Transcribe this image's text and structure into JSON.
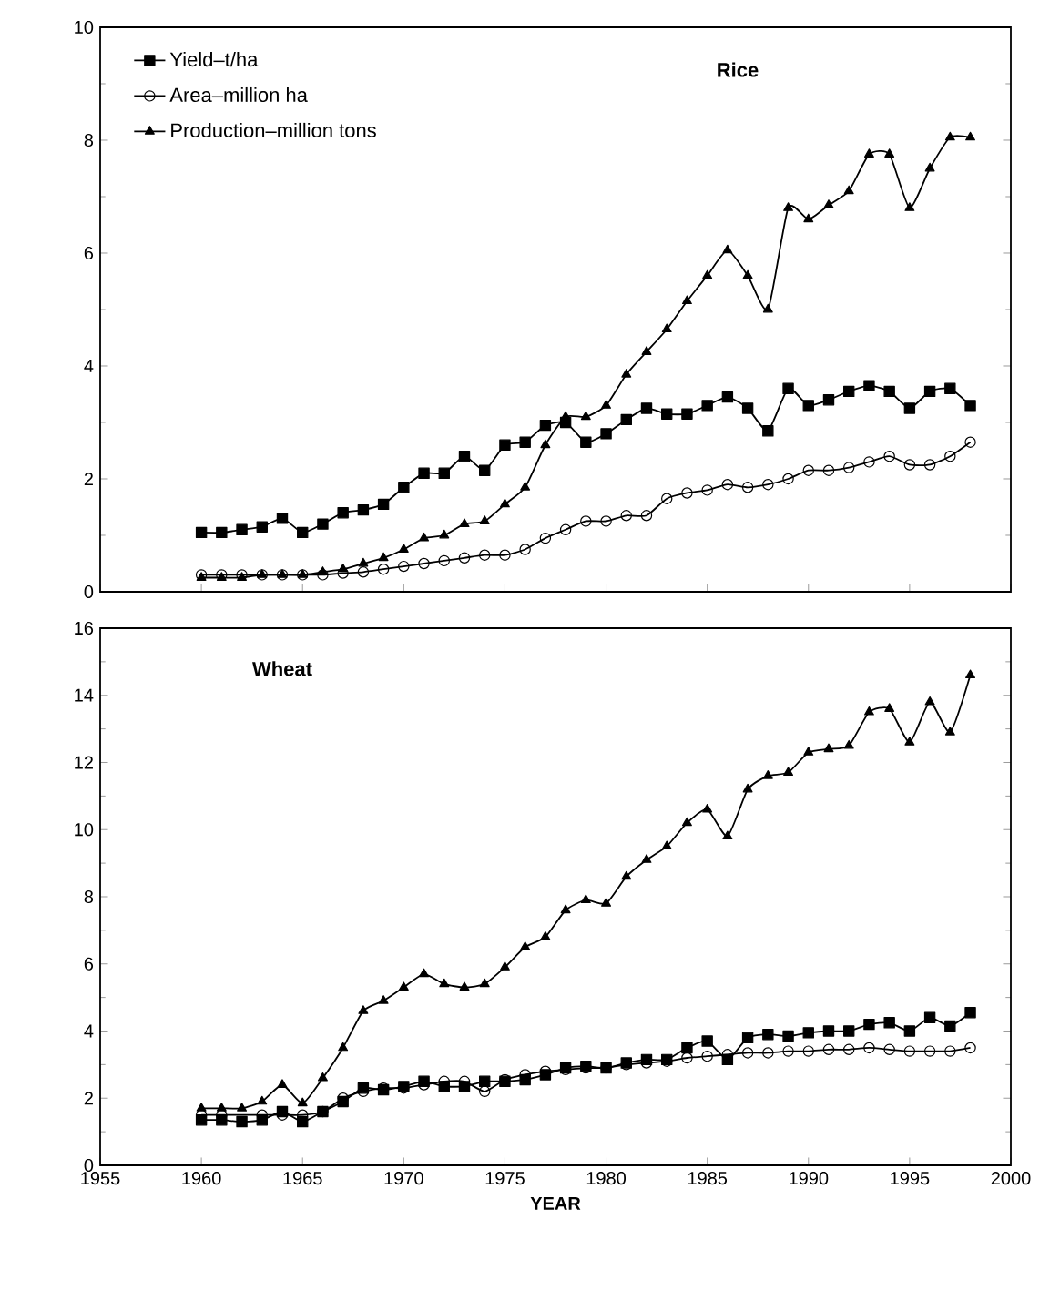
{
  "chart_data": [
    {
      "type": "line",
      "title": "Rice",
      "x": [
        1960,
        1961,
        1962,
        1963,
        1964,
        1965,
        1966,
        1967,
        1968,
        1969,
        1970,
        1971,
        1972,
        1973,
        1974,
        1975,
        1976,
        1977,
        1978,
        1979,
        1980,
        1981,
        1982,
        1983,
        1984,
        1985,
        1986,
        1987,
        1988,
        1989,
        1990,
        1991,
        1992,
        1993,
        1994,
        1995,
        1996,
        1997,
        1998
      ],
      "series": [
        {
          "name": "Yield–t/ha",
          "color": "#000000",
          "marker": "square",
          "values": [
            1.05,
            1.05,
            1.1,
            1.15,
            1.3,
            1.05,
            1.2,
            1.4,
            1.45,
            1.55,
            1.85,
            2.1,
            2.1,
            2.4,
            2.15,
            2.6,
            2.65,
            2.95,
            3.0,
            2.65,
            2.8,
            3.05,
            3.25,
            3.15,
            3.15,
            3.3,
            3.45,
            3.25,
            2.85,
            3.6,
            3.3,
            3.4,
            3.55,
            3.65,
            3.55,
            3.25,
            3.55,
            3.6,
            3.3
          ]
        },
        {
          "name": "Area–million ha",
          "color": "#000000",
          "marker": "circle",
          "values": [
            0.3,
            0.3,
            0.3,
            0.3,
            0.3,
            0.3,
            0.3,
            0.33,
            0.35,
            0.4,
            0.45,
            0.5,
            0.55,
            0.6,
            0.65,
            0.65,
            0.75,
            0.95,
            1.1,
            1.25,
            1.25,
            1.35,
            1.35,
            1.65,
            1.75,
            1.8,
            1.9,
            1.85,
            1.9,
            2.0,
            2.15,
            2.15,
            2.2,
            2.3,
            2.4,
            2.25,
            2.25,
            2.4,
            2.65
          ]
        },
        {
          "name": "Production–million tons",
          "color": "#000000",
          "marker": "triangle",
          "values": [
            0.25,
            0.25,
            0.25,
            0.3,
            0.3,
            0.3,
            0.35,
            0.4,
            0.5,
            0.6,
            0.75,
            0.95,
            1.0,
            1.2,
            1.25,
            1.55,
            1.85,
            2.6,
            3.1,
            3.1,
            3.3,
            3.85,
            4.25,
            4.65,
            5.15,
            5.6,
            6.05,
            5.6,
            5.0,
            6.8,
            6.6,
            6.85,
            7.1,
            7.75,
            7.75,
            6.8,
            7.5,
            8.05,
            8.05
          ]
        }
      ],
      "xlim": [
        1955,
        2000
      ],
      "ylim": [
        0,
        10
      ],
      "yticks": [
        0,
        2,
        4,
        6,
        8,
        10
      ],
      "xticks": [
        {
          "value": 1955,
          "label": null
        },
        {
          "value": 1960,
          "label": null
        },
        {
          "value": 1965,
          "label": null
        },
        {
          "value": 1970,
          "label": null
        },
        {
          "value": 1975,
          "label": null
        },
        {
          "value": 1980,
          "label": null
        },
        {
          "value": 1985,
          "label": null
        },
        {
          "value": 1990,
          "label": null
        },
        {
          "value": 1995,
          "label": null
        },
        {
          "value": 2000,
          "label": null
        }
      ],
      "tick_labels": "y",
      "legend": "top left",
      "grid": false,
      "line_style": "solid"
    },
    {
      "type": "line",
      "title": "Wheat",
      "xlabel": "YEAR",
      "x": [
        1960,
        1961,
        1962,
        1963,
        1964,
        1965,
        1966,
        1967,
        1968,
        1969,
        1970,
        1971,
        1972,
        1973,
        1974,
        1975,
        1976,
        1977,
        1978,
        1979,
        1980,
        1981,
        1982,
        1983,
        1984,
        1985,
        1986,
        1987,
        1988,
        1989,
        1990,
        1991,
        1992,
        1993,
        1994,
        1995,
        1996,
        1997,
        1998
      ],
      "series": [
        {
          "color": "#000000",
          "marker": "square",
          "values": [
            1.35,
            1.35,
            1.3,
            1.35,
            1.6,
            1.3,
            1.6,
            1.9,
            2.3,
            2.25,
            2.35,
            2.5,
            2.35,
            2.35,
            2.5,
            2.5,
            2.55,
            2.7,
            2.9,
            2.95,
            2.9,
            3.05,
            3.15,
            3.15,
            3.5,
            3.7,
            3.15,
            3.8,
            3.9,
            3.85,
            3.95,
            4.0,
            4.0,
            4.2,
            4.25,
            4.0,
            4.4,
            4.15,
            4.55
          ]
        },
        {
          "color": "#000000",
          "marker": "circle",
          "values": [
            1.5,
            1.5,
            null,
            1.5,
            1.5,
            1.5,
            1.6,
            2.0,
            2.2,
            2.3,
            2.3,
            2.4,
            2.5,
            2.5,
            2.2,
            2.55,
            2.7,
            2.8,
            2.85,
            2.9,
            2.9,
            3.0,
            3.05,
            3.1,
            3.2,
            3.25,
            3.3,
            3.35,
            3.35,
            3.4,
            3.4,
            3.45,
            3.45,
            3.5,
            3.45,
            3.4,
            3.4,
            3.4,
            3.5
          ]
        },
        {
          "color": "#000000",
          "marker": "triangle",
          "values": [
            1.7,
            1.7,
            1.7,
            1.9,
            2.4,
            1.85,
            2.6,
            3.5,
            4.6,
            4.9,
            5.3,
            5.7,
            5.4,
            5.3,
            5.4,
            5.9,
            6.5,
            6.8,
            7.6,
            7.9,
            7.8,
            8.6,
            9.1,
            9.5,
            10.2,
            10.6,
            9.8,
            11.2,
            11.6,
            11.7,
            12.3,
            12.4,
            12.5,
            13.5,
            13.6,
            12.6,
            13.8,
            12.9,
            14.6
          ]
        }
      ],
      "xlim": [
        1955,
        2000
      ],
      "ylim": [
        0,
        16
      ],
      "xticks": [
        1955,
        1960,
        1965,
        1970,
        1975,
        1980,
        1985,
        1990,
        1995,
        2000
      ],
      "yticks": [
        0,
        2,
        4,
        6,
        8,
        10,
        12,
        14,
        16
      ],
      "grid": false,
      "line_style": "solid"
    }
  ]
}
